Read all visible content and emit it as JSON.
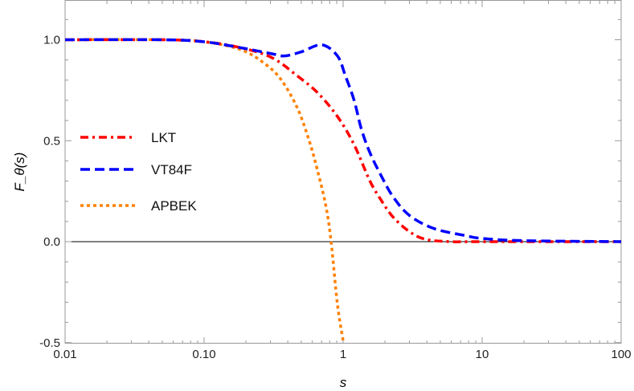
{
  "chart_data": {
    "type": "line",
    "xlabel": "s",
    "ylabel": "F_θ(s)",
    "xscale": "log",
    "xlim": [
      0.01,
      100
    ],
    "ylim": [
      -0.5,
      1.2
    ],
    "xticks": [
      "0.01",
      "0.10",
      "1",
      "10",
      "100"
    ],
    "yticks": [
      "-0.5",
      "0.0",
      "0.5",
      "1.0"
    ],
    "grid": false,
    "legend": "left-middle",
    "series": [
      {
        "name": "LKT",
        "color": "#ff0000",
        "style": "dashdot",
        "x": [
          0.01,
          0.05,
          0.1,
          0.185,
          0.31,
          0.47,
          0.65,
          0.91,
          1.2,
          1.56,
          1.9,
          2.3,
          3.0,
          3.9,
          5.9,
          10,
          100
        ],
        "y": [
          1.0,
          1.0,
          0.99,
          0.96,
          0.91,
          0.82,
          0.74,
          0.62,
          0.48,
          0.3,
          0.2,
          0.12,
          0.05,
          0.012,
          0.0,
          0.0,
          0.0
        ]
      },
      {
        "name": "VT84F",
        "color": "#0000ff",
        "style": "dashed",
        "x": [
          0.01,
          0.05,
          0.1,
          0.185,
          0.31,
          0.38,
          0.5,
          0.7,
          0.91,
          1.04,
          1.2,
          1.35,
          1.56,
          1.9,
          2.3,
          3.0,
          4.5,
          7.6,
          10,
          20,
          100
        ],
        "y": [
          1.0,
          1.0,
          0.99,
          0.96,
          0.93,
          0.92,
          0.94,
          0.975,
          0.92,
          0.82,
          0.7,
          0.56,
          0.44,
          0.32,
          0.22,
          0.13,
          0.065,
          0.03,
          0.016,
          0.005,
          0.0
        ]
      },
      {
        "name": "APBEK",
        "color": "#ff8000",
        "style": "dotted",
        "x": [
          0.01,
          0.05,
          0.1,
          0.185,
          0.275,
          0.36,
          0.47,
          0.57,
          0.65,
          0.75,
          0.82,
          0.91,
          1.0
        ],
        "y": [
          1.0,
          1.0,
          0.99,
          0.95,
          0.88,
          0.8,
          0.66,
          0.5,
          0.36,
          0.18,
          0.0,
          -0.31,
          -0.49
        ]
      }
    ]
  }
}
